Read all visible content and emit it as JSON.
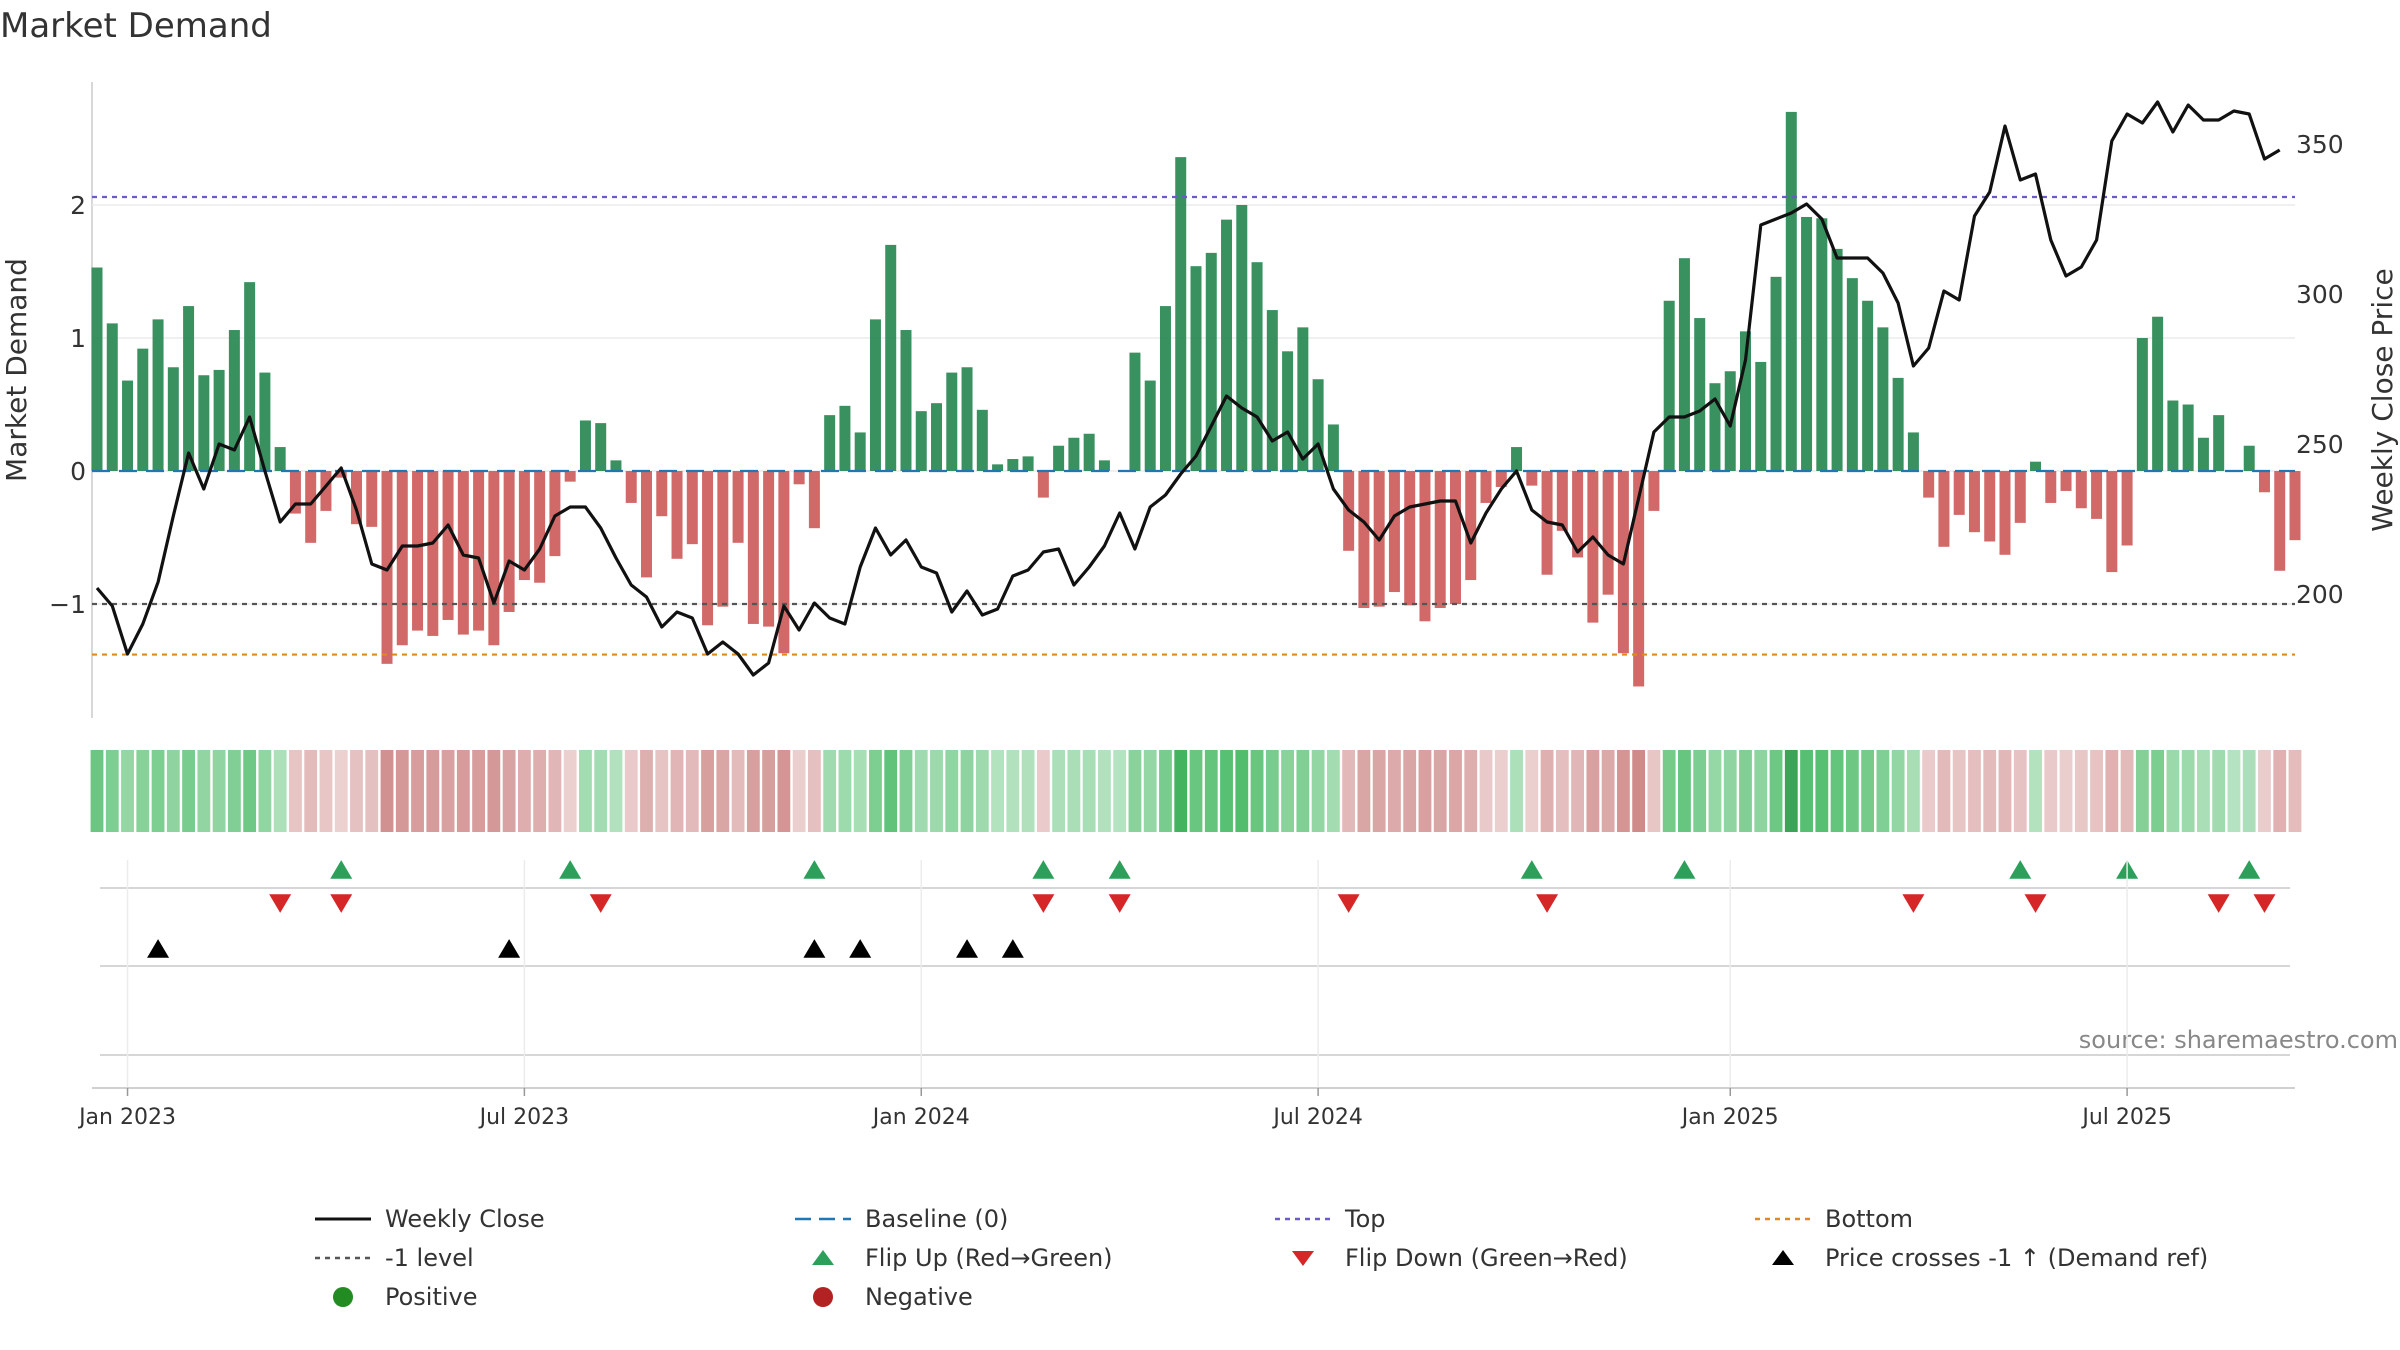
{
  "chart_data": {
    "type": "bar",
    "title": "Market Demand",
    "ylabel": "Market Demand",
    "y2label": "Weekly Close Price",
    "source": "source: sharemaestro.com",
    "ylim": [
      -1.9,
      2.9
    ],
    "y2lim": [
      162,
      372
    ],
    "yticks": [
      {
        "v": 2,
        "t": "2"
      },
      {
        "v": 1,
        "t": "1"
      },
      {
        "v": 0,
        "t": "0"
      },
      {
        "v": -1,
        "t": "−1"
      }
    ],
    "y2ticks": [
      {
        "v": 350,
        "t": "350"
      },
      {
        "v": 300,
        "t": "300"
      },
      {
        "v": 250,
        "t": "250"
      },
      {
        "v": 200,
        "t": "200"
      }
    ],
    "xticks": [
      {
        "i": 2,
        "t": "Jan 2023"
      },
      {
        "i": 28,
        "t": "Jul 2023"
      },
      {
        "i": 54,
        "t": "Jan 2024"
      },
      {
        "i": 80,
        "t": "Jul 2024"
      },
      {
        "i": 107,
        "t": "Jan 2025"
      },
      {
        "i": 133,
        "t": "Jul 2025"
      }
    ],
    "levels": {
      "top": 2.06,
      "bottom": -1.38,
      "minus_one": -1.0,
      "baseline": 0
    },
    "demand": [
      1.53,
      1.11,
      0.68,
      0.92,
      1.14,
      0.78,
      1.24,
      0.72,
      0.76,
      1.06,
      1.42,
      0.74,
      0.18,
      -0.32,
      -0.54,
      -0.3,
      -0.05,
      -0.4,
      -0.42,
      -1.45,
      -1.31,
      -1.2,
      -1.24,
      -1.12,
      -1.23,
      -1.2,
      -1.31,
      -1.06,
      -0.82,
      -0.84,
      -0.64,
      -0.08,
      0.38,
      0.36,
      0.08,
      -0.24,
      -0.8,
      -0.34,
      -0.66,
      -0.55,
      -1.16,
      -1.02,
      -0.54,
      -1.15,
      -1.17,
      -1.37,
      -0.1,
      -0.43,
      0.42,
      0.49,
      0.29,
      1.14,
      1.7,
      1.06,
      0.45,
      0.51,
      0.74,
      0.78,
      0.46,
      0.05,
      0.09,
      0.11,
      -0.2,
      0.19,
      0.25,
      0.28,
      0.08,
      0.0,
      0.89,
      0.68,
      1.24,
      2.36,
      1.54,
      1.64,
      1.89,
      2.0,
      1.57,
      1.21,
      0.9,
      1.08,
      0.69,
      0.35,
      -0.6,
      -1.03,
      -1.02,
      -0.91,
      -1.01,
      -1.13,
      -1.03,
      -1.0,
      -0.82,
      -0.24,
      -0.12,
      0.18,
      -0.11,
      -0.78,
      -0.45,
      -0.65,
      -1.14,
      -0.93,
      -1.37,
      -1.62,
      -0.3,
      1.28,
      1.6,
      1.15,
      0.66,
      0.75,
      1.05,
      0.82,
      1.46,
      2.7,
      1.91,
      1.9,
      1.67,
      1.45,
      1.28,
      1.08,
      0.7,
      0.29,
      -0.2,
      -0.57,
      -0.33,
      -0.46,
      -0.53,
      -0.63,
      -0.39,
      0.07,
      -0.24,
      -0.15,
      -0.28,
      -0.36,
      -0.76,
      -0.56,
      1.0,
      1.16,
      0.53,
      0.5,
      0.25,
      0.42,
      0.0,
      0.19,
      -0.16,
      -0.75,
      -0.52
    ],
    "price": [
      202,
      196,
      180,
      190,
      204,
      226,
      247,
      235,
      250,
      248,
      259,
      241,
      224,
      230,
      230,
      236,
      242,
      228,
      210,
      208,
      216,
      216,
      217,
      223,
      213,
      212,
      197,
      211,
      208,
      215,
      226,
      229,
      229,
      222,
      212,
      203,
      199,
      189,
      194,
      192,
      180,
      184,
      180,
      173,
      177,
      196,
      188,
      197,
      192,
      190,
      209,
      222,
      213,
      218,
      209,
      207,
      194,
      201,
      193,
      195,
      206,
      208,
      214,
      215,
      203,
      209,
      216,
      227,
      215,
      229,
      233,
      240,
      246,
      256,
      266,
      262,
      259,
      251,
      254,
      245,
      250,
      235,
      228,
      224,
      218,
      226,
      229,
      230,
      231,
      231,
      217,
      227,
      235,
      241,
      228,
      224,
      223,
      214,
      219,
      213,
      210,
      232,
      254,
      259,
      259,
      261,
      265,
      256,
      278,
      323,
      325,
      327,
      330,
      325,
      312,
      312,
      312,
      307,
      297,
      276,
      282,
      301,
      298,
      326,
      334,
      356,
      338,
      340,
      318,
      306,
      309,
      318,
      351,
      360,
      357,
      364,
      354,
      363,
      358,
      358,
      361,
      360,
      345,
      348
    ],
    "flip_up": [
      16,
      31,
      47,
      62,
      67,
      94,
      104,
      126,
      133,
      141
    ],
    "flip_down": [
      12,
      16,
      33,
      62,
      67,
      82,
      95,
      119,
      127,
      139,
      142
    ],
    "price_cross": [
      4,
      27,
      47,
      50,
      57,
      60
    ],
    "legend": [
      {
        "label": "Weekly Close",
        "key": "close"
      },
      {
        "label": "Baseline (0)",
        "key": "baseline"
      },
      {
        "label": "Top",
        "key": "top"
      },
      {
        "label": "Bottom",
        "key": "bottom"
      },
      {
        "label": "-1 level",
        "key": "m1"
      },
      {
        "label": "Flip Up (Red→Green)",
        "key": "up"
      },
      {
        "label": "Flip Down (Green→Red)",
        "key": "down"
      },
      {
        "label": "Price crosses -1 ↑ (Demand ref)",
        "key": "cross"
      },
      {
        "label": "Positive",
        "key": "pos"
      },
      {
        "label": "Negative",
        "key": "neg"
      }
    ],
    "colors": {
      "pos": "#2e8b57",
      "neg": "#cd5c5c",
      "line": "#111111",
      "baseline": "#1f77b4",
      "top": "#6a5acd",
      "bottom": "#e08a1e",
      "m1": "#555555",
      "up": "#2ca05a",
      "down": "#d62728",
      "cross": "#000000",
      "posDot": "#228b22",
      "negDot": "#b22222"
    }
  }
}
